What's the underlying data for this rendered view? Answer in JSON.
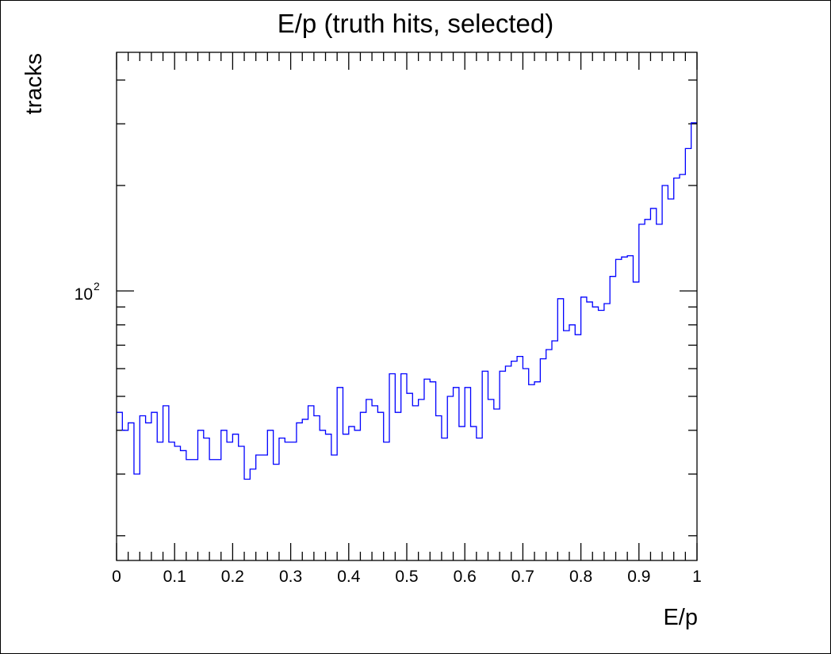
{
  "chart_data": {
    "type": "line",
    "title": "E/p (truth hits, selected)",
    "xlabel": "E/p",
    "ylabel": "tracks",
    "x_range": [
      0,
      1
    ],
    "y_range": [
      17,
      480
    ],
    "y_log_scale": true,
    "grid": false,
    "legend": "none",
    "line_color": "#0000ff",
    "x_ticks": [
      {
        "value": 0,
        "label": "0"
      },
      {
        "value": 0.1,
        "label": "0.1"
      },
      {
        "value": 0.2,
        "label": "0.2"
      },
      {
        "value": 0.3,
        "label": "0.3"
      },
      {
        "value": 0.4,
        "label": "0.4"
      },
      {
        "value": 0.5,
        "label": "0.5"
      },
      {
        "value": 0.6,
        "label": "0.6"
      },
      {
        "value": 0.7,
        "label": "0.7"
      },
      {
        "value": 0.8,
        "label": "0.8"
      },
      {
        "value": 0.9,
        "label": "0.9"
      },
      {
        "value": 1,
        "label": "1"
      }
    ],
    "y_ticks": [
      {
        "value": 100,
        "base": "10",
        "exponent": "2"
      }
    ],
    "bin_edges_range": [
      0,
      1
    ],
    "bin_values": [
      45,
      40,
      42,
      30,
      44,
      42,
      45,
      37,
      47,
      37,
      36,
      35,
      33,
      33,
      40,
      38,
      33,
      33,
      40,
      37,
      39,
      36,
      29,
      31,
      34,
      34,
      40,
      32,
      38,
      37,
      37,
      42,
      43,
      47,
      44,
      40,
      39,
      34,
      53,
      39,
      41,
      40,
      45,
      49,
      47,
      45,
      37,
      58,
      45,
      58,
      51,
      47,
      49,
      56,
      55,
      44,
      38,
      50,
      53,
      41,
      53,
      41,
      38,
      59,
      49,
      46,
      59,
      61,
      63,
      65,
      60,
      54,
      55,
      64,
      68,
      72,
      95,
      77,
      80,
      75,
      96,
      93,
      90,
      88,
      92,
      110,
      123,
      125,
      126,
      106,
      155,
      160,
      172,
      155,
      200,
      183,
      210,
      215,
      255,
      302
    ]
  }
}
